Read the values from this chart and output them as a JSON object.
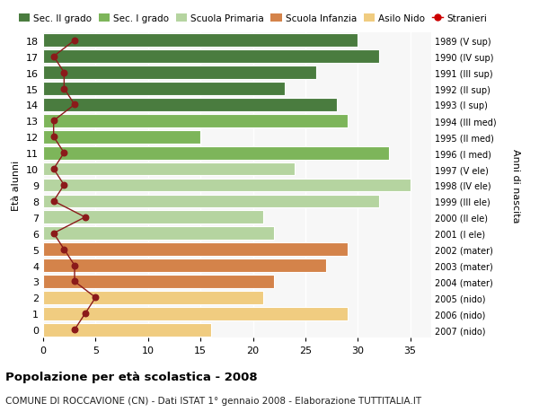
{
  "ages": [
    18,
    17,
    16,
    15,
    14,
    13,
    12,
    11,
    10,
    9,
    8,
    7,
    6,
    5,
    4,
    3,
    2,
    1,
    0
  ],
  "bar_values": [
    30,
    32,
    26,
    23,
    28,
    29,
    15,
    33,
    24,
    35,
    32,
    21,
    22,
    29,
    27,
    22,
    21,
    29,
    16
  ],
  "bar_colors": [
    "#4a7c3f",
    "#4a7c3f",
    "#4a7c3f",
    "#4a7c3f",
    "#4a7c3f",
    "#7db55a",
    "#7db55a",
    "#7db55a",
    "#b5d4a0",
    "#b5d4a0",
    "#b5d4a0",
    "#b5d4a0",
    "#b5d4a0",
    "#d4834a",
    "#d4834a",
    "#d4834a",
    "#f0cc80",
    "#f0cc80",
    "#f0cc80"
  ],
  "right_labels": [
    "1989 (V sup)",
    "1990 (IV sup)",
    "1991 (III sup)",
    "1992 (II sup)",
    "1993 (I sup)",
    "1994 (III med)",
    "1995 (II med)",
    "1996 (I med)",
    "1997 (V ele)",
    "1998 (IV ele)",
    "1999 (III ele)",
    "2000 (II ele)",
    "2001 (I ele)",
    "2002 (mater)",
    "2003 (mater)",
    "2004 (mater)",
    "2005 (nido)",
    "2006 (nido)",
    "2007 (nido)"
  ],
  "stranieri_by_age": {
    "18": 3,
    "17": 1,
    "16": 2,
    "15": 2,
    "14": 3,
    "13": 1,
    "12": 1,
    "11": 2,
    "10": 1,
    "9": 2,
    "8": 1,
    "7": 4,
    "6": 1,
    "5": 2,
    "4": 3,
    "3": 3,
    "2": 5,
    "1": 4,
    "0": 3
  },
  "stranieri_color": "#8b1a1a",
  "legend_labels": [
    "Sec. II grado",
    "Sec. I grado",
    "Scuola Primaria",
    "Scuola Infanzia",
    "Asilo Nido",
    "Stranieri"
  ],
  "legend_colors": [
    "#4a7c3f",
    "#7db55a",
    "#b5d4a0",
    "#d4834a",
    "#f0cc80",
    "#cc0000"
  ],
  "ylabel": "Età alunni",
  "right_ylabel": "Anni di nascita",
  "title1": "Popolazione per età scolastica - 2008",
  "title2": "COMUNE DI ROCCAVIONE (CN) - Dati ISTAT 1° gennaio 2008 - Elaborazione TUTTITALIA.IT",
  "xlim": [
    0,
    37
  ],
  "ylim": [
    -0.5,
    18.5
  ],
  "xticks": [
    0,
    5,
    10,
    15,
    20,
    25,
    30,
    35
  ],
  "bg_color": "#f7f7f7"
}
